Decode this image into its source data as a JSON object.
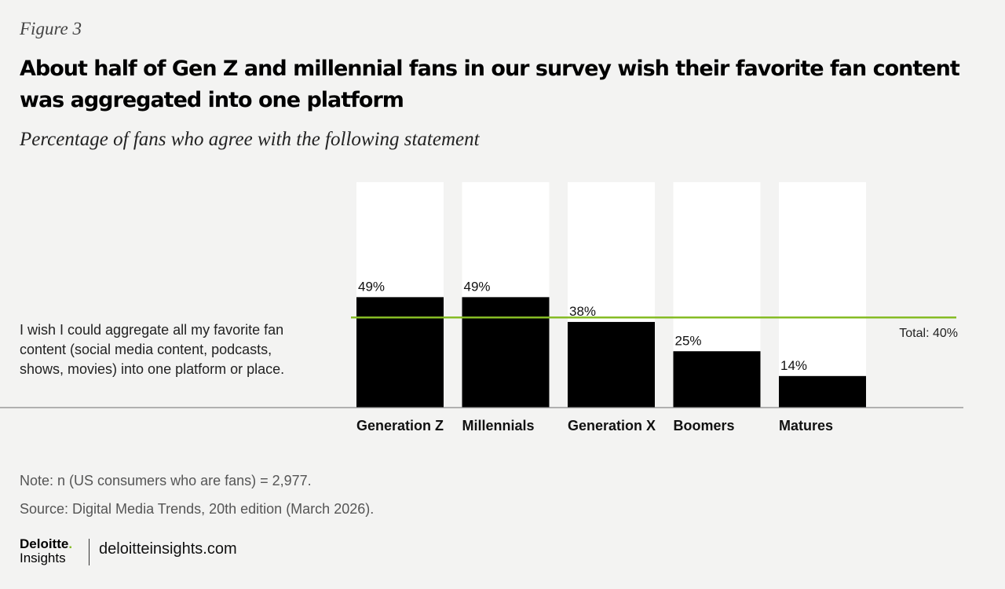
{
  "figure_label": "Figure 3",
  "title": "About half of Gen Z and millennial fans in our survey wish their favorite fan content was aggregated into one platform",
  "subtitle": "Percentage of fans who agree with the following statement",
  "statement": "I wish I could aggregate all my favorite fan content (social media content, podcasts, shows, movies) into one platform or place.",
  "chart_data": {
    "type": "bar",
    "categories": [
      "Generation Z",
      "Millennials",
      "Generation X",
      "Boomers",
      "Matures"
    ],
    "values": [
      49,
      49,
      38,
      25,
      14
    ],
    "value_labels": [
      "49%",
      "49%",
      "38%",
      "25%",
      "14%"
    ],
    "ylim": [
      0,
      100
    ],
    "reference_line": {
      "value": 40,
      "label": "Total: 40%"
    },
    "colors": {
      "bar": "#000000",
      "track": "#ffffff",
      "reference": "#86bc25",
      "axis": "#888888"
    }
  },
  "notes": {
    "note": "Note: n (US consumers who are fans) = 2,977.",
    "source": "Source: Digital Media Trends, 20th edition (March 2026)."
  },
  "footer": {
    "brand": "Deloitte",
    "brand_dot": ".",
    "brand_sub": "Insights",
    "site": "deloitteinsights.com"
  }
}
